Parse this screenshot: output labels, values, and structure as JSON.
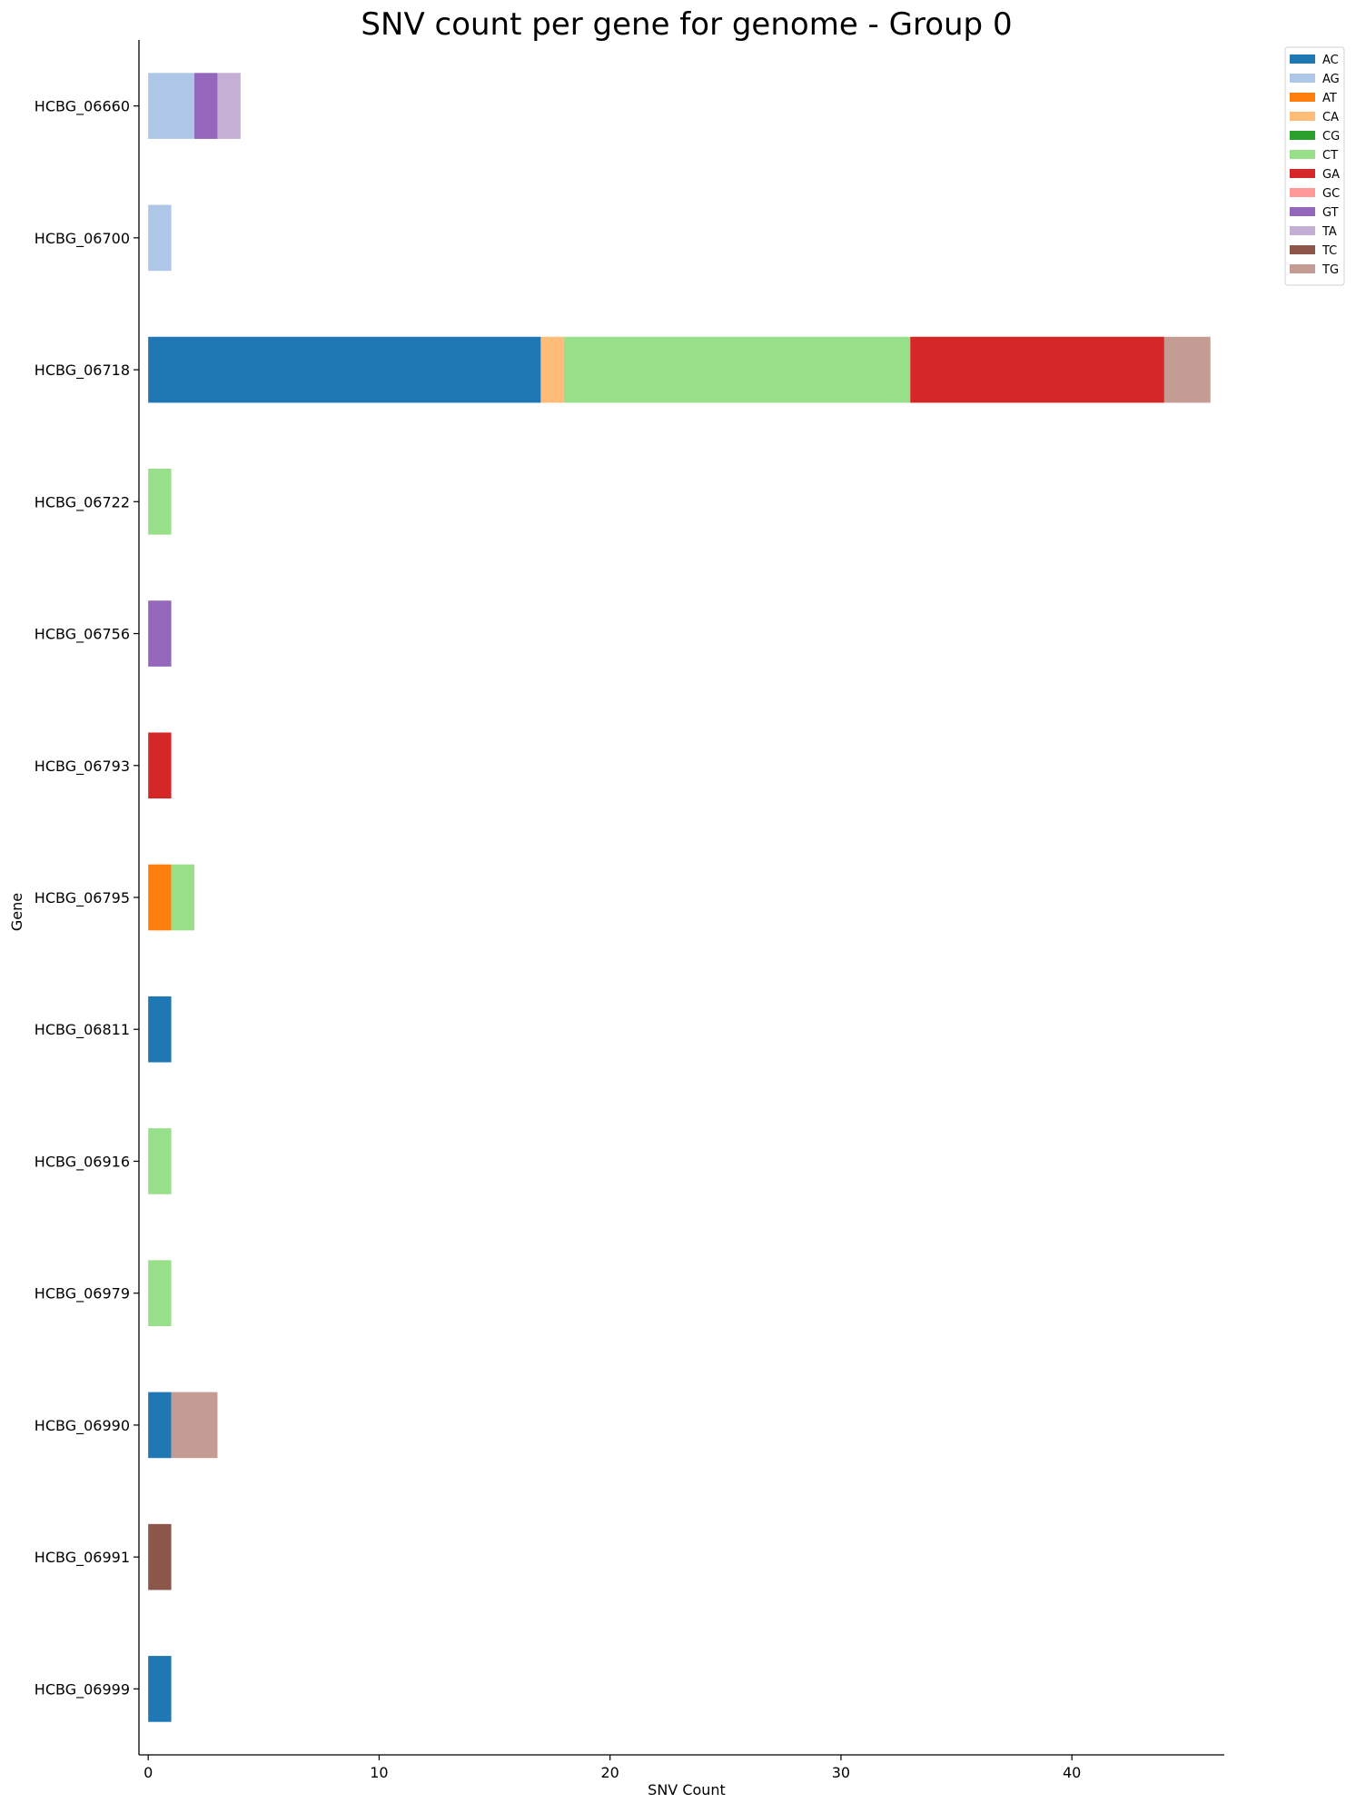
{
  "chart_data": {
    "type": "bar",
    "orientation": "horizontal",
    "stacked": true,
    "title": "SNV count per gene for genome - Group 0",
    "xlabel": "SNV Count",
    "ylabel": "Gene",
    "xlim": [
      -0.4,
      46.6
    ],
    "xticks": [
      0,
      10,
      20,
      30,
      40
    ],
    "grid": false,
    "legend_position": "top-right outside",
    "categories": [
      "HCBG_06660",
      "HCBG_06700",
      "HCBG_06718",
      "HCBG_06722",
      "HCBG_06756",
      "HCBG_06793",
      "HCBG_06795",
      "HCBG_06811",
      "HCBG_06916",
      "HCBG_06979",
      "HCBG_06990",
      "HCBG_06991",
      "HCBG_06999"
    ],
    "series": [
      {
        "name": "AC",
        "color": "#1f77b4",
        "values": [
          0,
          0,
          17,
          0,
          0,
          0,
          0,
          1,
          0,
          0,
          1,
          0,
          1
        ]
      },
      {
        "name": "AG",
        "color": "#aec7e8",
        "values": [
          2,
          1,
          0,
          0,
          0,
          0,
          0,
          0,
          0,
          0,
          0,
          0,
          0
        ]
      },
      {
        "name": "AT",
        "color": "#ff7f0e",
        "values": [
          0,
          0,
          0,
          0,
          0,
          0,
          1,
          0,
          0,
          0,
          0,
          0,
          0
        ]
      },
      {
        "name": "CA",
        "color": "#ffbb78",
        "values": [
          0,
          0,
          1,
          0,
          0,
          0,
          0,
          0,
          0,
          0,
          0,
          0,
          0
        ]
      },
      {
        "name": "CG",
        "color": "#2ca02c",
        "values": [
          0,
          0,
          0,
          0,
          0,
          0,
          0,
          0,
          0,
          0,
          0,
          0,
          0
        ]
      },
      {
        "name": "CT",
        "color": "#98df8a",
        "values": [
          0,
          0,
          15,
          1,
          0,
          0,
          1,
          0,
          1,
          1,
          0,
          0,
          0
        ]
      },
      {
        "name": "GA",
        "color": "#d62728",
        "values": [
          0,
          0,
          11,
          0,
          0,
          1,
          0,
          0,
          0,
          0,
          0,
          0,
          0
        ]
      },
      {
        "name": "GC",
        "color": "#ff9896",
        "values": [
          0,
          0,
          0,
          0,
          0,
          0,
          0,
          0,
          0,
          0,
          0,
          0,
          0
        ]
      },
      {
        "name": "GT",
        "color": "#9467bd",
        "values": [
          1,
          0,
          0,
          0,
          1,
          0,
          0,
          0,
          0,
          0,
          0,
          0,
          0
        ]
      },
      {
        "name": "TA",
        "color": "#c5b0d5",
        "values": [
          1,
          0,
          0,
          0,
          0,
          0,
          0,
          0,
          0,
          0,
          0,
          0,
          0
        ]
      },
      {
        "name": "TC",
        "color": "#8c564b",
        "values": [
          0,
          0,
          0,
          0,
          0,
          0,
          0,
          0,
          0,
          0,
          0,
          1,
          0
        ]
      },
      {
        "name": "TG",
        "color": "#c49c94",
        "values": [
          0,
          0,
          2,
          0,
          0,
          0,
          0,
          0,
          0,
          0,
          2,
          0,
          0
        ]
      }
    ]
  }
}
